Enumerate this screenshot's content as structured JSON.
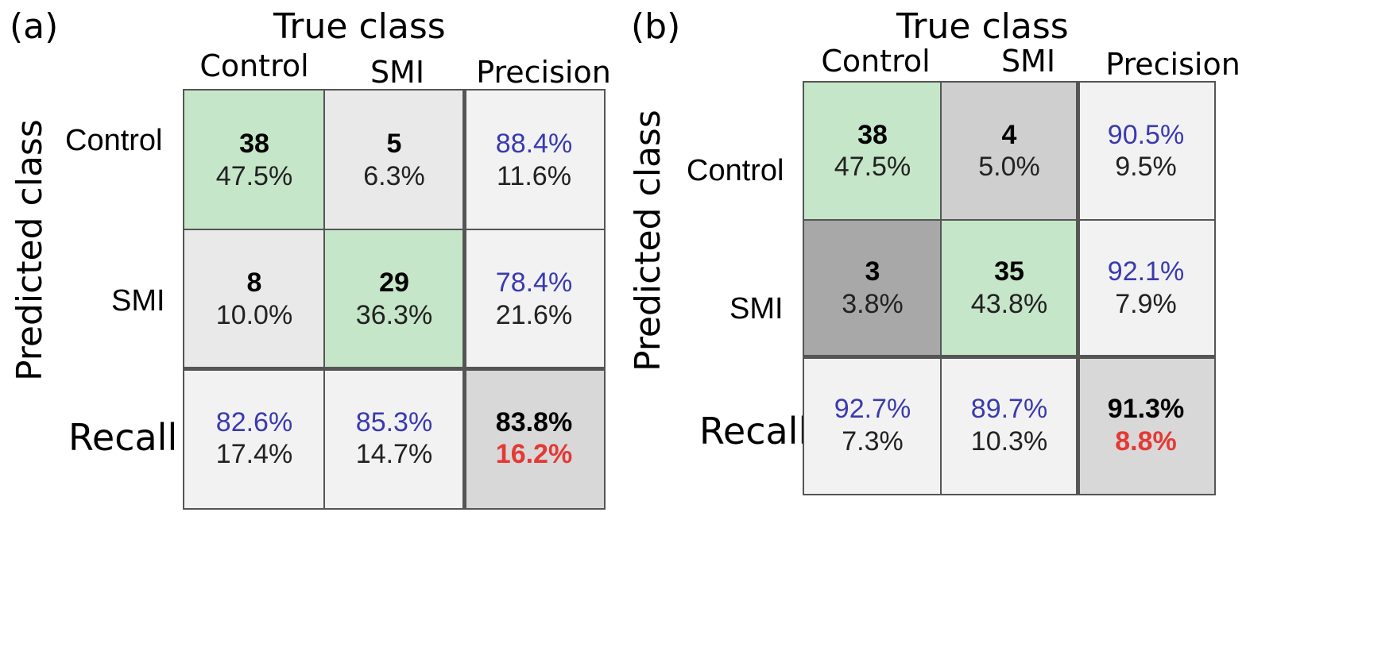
{
  "chart_data": [
    {
      "type": "table",
      "panel_label": "(a)",
      "true_title": "True class",
      "pred_title": "Predicted class",
      "col_labels": [
        "Control",
        "SMI",
        "Precision"
      ],
      "row_labels": [
        "Control",
        "SMI",
        "Recall"
      ],
      "cells": [
        [
          {
            "top": "38",
            "bottom": "47.5%"
          },
          {
            "top": "5",
            "bottom": "6.3%"
          },
          {
            "top": "88.4%",
            "bottom": "11.6%"
          }
        ],
        [
          {
            "top": "8",
            "bottom": "10.0%"
          },
          {
            "top": "29",
            "bottom": "36.3%"
          },
          {
            "top": "78.4%",
            "bottom": "21.6%"
          }
        ],
        [
          {
            "top": "82.6%",
            "bottom": "17.4%"
          },
          {
            "top": "85.3%",
            "bottom": "14.7%"
          },
          {
            "top": "83.8%",
            "bottom": "16.2%"
          }
        ]
      ],
      "cell_colors": [
        [
          "#c5e6c8",
          "#e9e9e9",
          "#f2f2f2"
        ],
        [
          "#e9e9e9",
          "#c5e6c8",
          "#f2f2f2"
        ],
        [
          "#f2f2f2",
          "#f2f2f2",
          "#d8d8d8"
        ]
      ]
    },
    {
      "type": "table",
      "panel_label": "(b)",
      "true_title": "True class",
      "pred_title": "Predicted class",
      "col_labels": [
        "Control",
        "SMI",
        "Precision"
      ],
      "row_labels": [
        "Control",
        "SMI",
        "Recall"
      ],
      "cells": [
        [
          {
            "top": "38",
            "bottom": "47.5%"
          },
          {
            "top": "4",
            "bottom": "5.0%"
          },
          {
            "top": "90.5%",
            "bottom": "9.5%"
          }
        ],
        [
          {
            "top": "3",
            "bottom": "3.8%"
          },
          {
            "top": "35",
            "bottom": "43.8%"
          },
          {
            "top": "92.1%",
            "bottom": "7.9%"
          }
        ],
        [
          {
            "top": "92.7%",
            "bottom": "7.3%"
          },
          {
            "top": "89.7%",
            "bottom": "10.3%"
          },
          {
            "top": "91.3%",
            "bottom": "8.8%"
          }
        ]
      ],
      "cell_colors": [
        [
          "#c5e6c8",
          "#cfcfcf",
          "#f2f2f2"
        ],
        [
          "#a8a8a8",
          "#c5e6c8",
          "#f2f2f2"
        ],
        [
          "#f2f2f2",
          "#f2f2f2",
          "#d8d8d8"
        ]
      ]
    }
  ]
}
